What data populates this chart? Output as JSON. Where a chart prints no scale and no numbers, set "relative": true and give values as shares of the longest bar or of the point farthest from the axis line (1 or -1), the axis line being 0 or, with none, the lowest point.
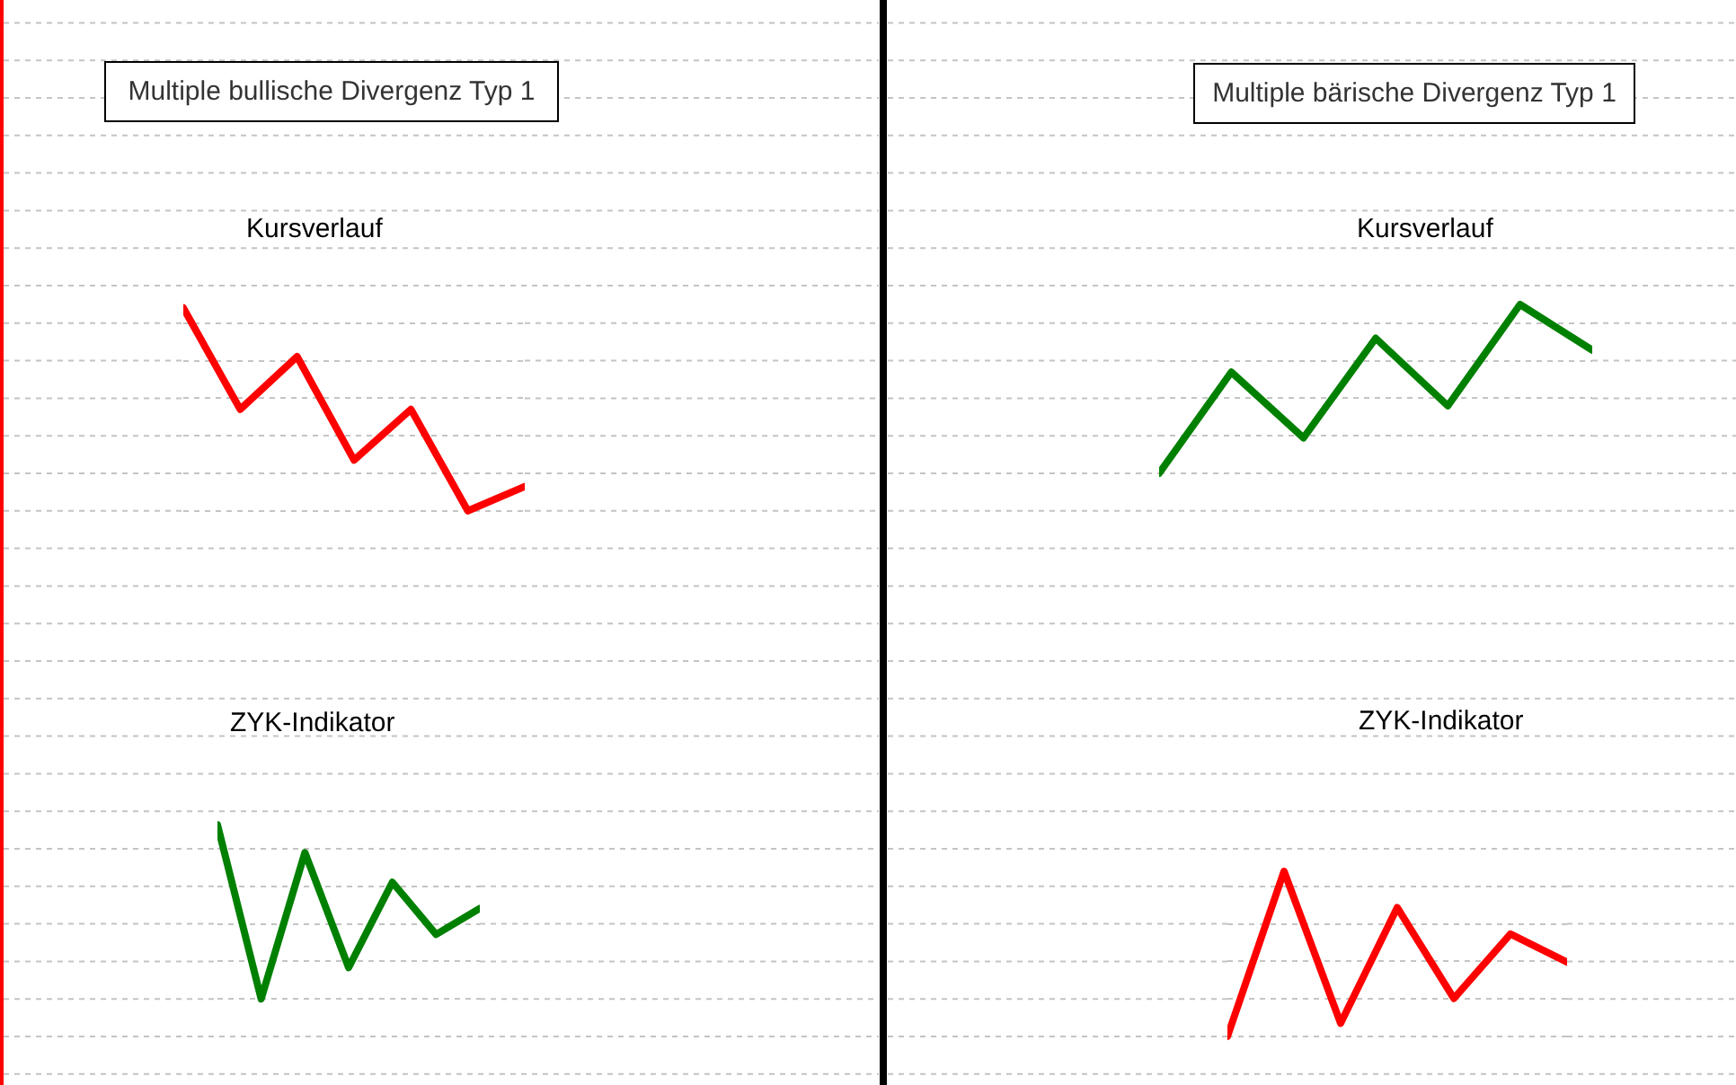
{
  "chart_data": [
    {
      "type": "line",
      "title": "Multiple bullische Divergenz Typ 1",
      "subtitle": "Kursverlauf",
      "categories": [
        null,
        null,
        null,
        null,
        null,
        null,
        null
      ],
      "relative": true,
      "values": [
        1,
        0.5,
        0.76,
        0.25,
        0.5,
        0,
        0.12
      ],
      "color": "#ff0000",
      "grid": "y"
    },
    {
      "type": "line",
      "title": "ZYK-Indikator",
      "categories": [
        null,
        null,
        null,
        null,
        null,
        null,
        null
      ],
      "relative": true,
      "values": [
        1,
        0,
        0.84,
        0.18,
        0.67,
        0.37,
        0.52
      ],
      "color": "#008000",
      "grid": "y"
    },
    {
      "type": "line",
      "title": "Multiple bärische Divergenz Typ 1",
      "subtitle": "Kursverlauf",
      "categories": [
        null,
        null,
        null,
        null,
        null,
        null,
        null
      ],
      "relative": true,
      "values": [
        0,
        0.6,
        0.21,
        0.8,
        0.4,
        1,
        0.73
      ],
      "color": "#008000",
      "grid": "y"
    },
    {
      "type": "line",
      "title": "ZYK-Indikator",
      "categories": [
        null,
        null,
        null,
        null,
        null,
        null,
        null
      ],
      "relative": true,
      "values": [
        0,
        1,
        0.08,
        0.78,
        0.23,
        0.62,
        0.45
      ],
      "color": "#ff0000",
      "grid": "y"
    }
  ]
}
